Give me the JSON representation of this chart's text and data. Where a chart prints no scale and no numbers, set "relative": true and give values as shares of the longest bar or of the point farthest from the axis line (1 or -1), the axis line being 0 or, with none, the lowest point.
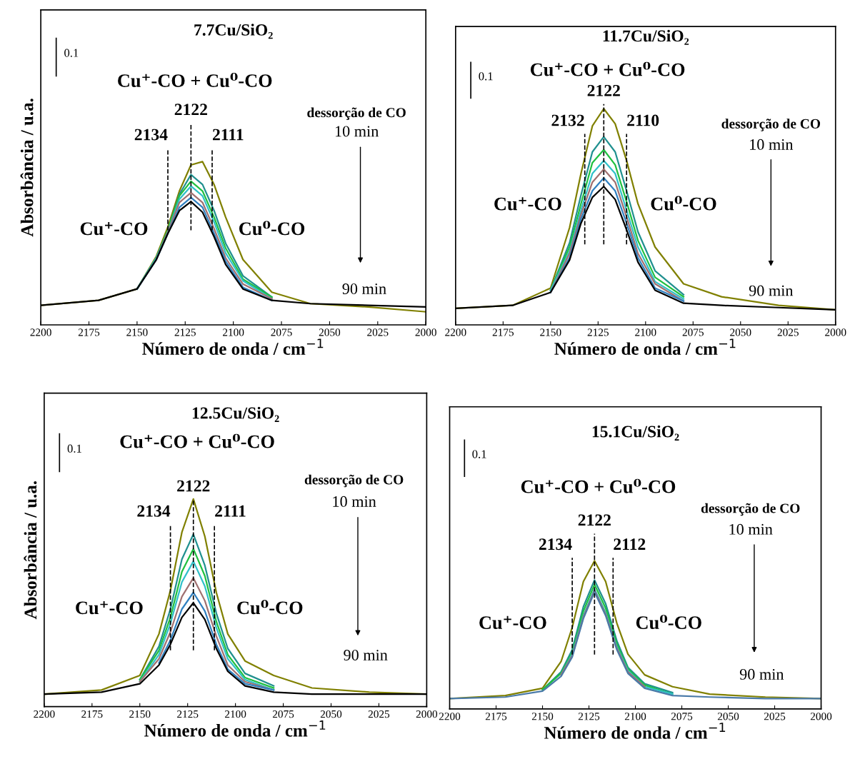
{
  "chart_data": [
    {
      "type": "line",
      "title": "7.7Cu/SiO₂",
      "relative": true,
      "xlabel": "Número de onda / cm$^{−1}$",
      "ylabel": "Absorbância / u.a.",
      "x": [
        2200,
        2170,
        2150,
        2140,
        2134,
        2128,
        2122,
        2116,
        2110,
        2104,
        2095,
        2080,
        2060,
        2030,
        2000
      ],
      "xlim": [
        2200,
        2000
      ],
      "xticks": [
        2200,
        2175,
        2150,
        2125,
        2100,
        2075,
        2050,
        2025,
        2000
      ],
      "grid": false,
      "legend": false,
      "marker": "none",
      "line_style": "solid",
      "series": [
        {
          "color": "#808000",
          "values": [
            0.12,
            0.15,
            0.22,
            0.42,
            0.6,
            0.82,
            0.98,
            1.0,
            0.86,
            0.66,
            0.4,
            0.2,
            0.13,
            0.11,
            0.08
          ]
        },
        {
          "color": "#20908f",
          "values": [
            null,
            null,
            0.22,
            0.41,
            0.58,
            0.8,
            0.92,
            0.86,
            0.7,
            0.5,
            0.3,
            0.17,
            null,
            null,
            null
          ]
        },
        {
          "color": "#20c040",
          "values": [
            null,
            null,
            0.22,
            0.41,
            0.58,
            0.79,
            0.88,
            0.82,
            0.66,
            0.47,
            0.28,
            0.17,
            null,
            null,
            null
          ]
        },
        {
          "color": "#30c0c8",
          "values": [
            null,
            null,
            0.22,
            0.41,
            0.57,
            0.77,
            0.85,
            0.79,
            0.63,
            0.44,
            0.27,
            0.16,
            null,
            null,
            null
          ]
        },
        {
          "color": "#a07070",
          "values": [
            null,
            null,
            0.22,
            0.4,
            0.57,
            0.75,
            0.81,
            0.75,
            0.59,
            0.41,
            0.25,
            0.16,
            null,
            null,
            null
          ]
        },
        {
          "color": "#3080c0",
          "values": [
            null,
            null,
            0.22,
            0.4,
            0.56,
            0.72,
            0.78,
            0.72,
            0.56,
            0.39,
            0.23,
            0.15,
            null,
            null,
            null
          ]
        },
        {
          "color": "#000000",
          "values": [
            0.12,
            0.15,
            0.22,
            0.4,
            0.56,
            0.7,
            0.755,
            0.69,
            0.54,
            0.37,
            0.22,
            0.15,
            0.13,
            0.12,
            0.11
          ]
        }
      ],
      "ref_lines": [
        {
          "axis": "x",
          "value": 2134,
          "label": "2134",
          "color": "#000000",
          "line_style": "dashed"
        },
        {
          "axis": "x",
          "value": 2122,
          "label": "2122",
          "color": "#000000",
          "line_style": "dashed"
        },
        {
          "axis": "x",
          "value": 2111,
          "label": "2111",
          "color": "#000000",
          "line_style": "dashed"
        }
      ],
      "annotations": [
        "0.1",
        "Cu⁺-CO + Cu⁰-CO",
        "dessorção de CO",
        "10 min",
        "90 min",
        "Cu⁺-CO",
        "Cu⁰-CO"
      ]
    },
    {
      "type": "line",
      "title": "11.7Cu/SiO₂",
      "relative": true,
      "xlabel": "Número de onda / cm$^{−1}$",
      "x": [
        2200,
        2170,
        2150,
        2140,
        2134,
        2128,
        2122,
        2116,
        2110,
        2104,
        2095,
        2080,
        2060,
        2030,
        2000
      ],
      "xlim": [
        2200,
        2000
      ],
      "xticks": [
        2200,
        2175,
        2150,
        2125,
        2100,
        2075,
        2050,
        2025,
        2000
      ],
      "grid": false,
      "legend": false,
      "marker": "none",
      "line_style": "solid",
      "series": [
        {
          "color": "#808000",
          "values": [
            0.076,
            0.09,
            0.17,
            0.45,
            0.7,
            0.92,
            1.0,
            0.93,
            0.76,
            0.56,
            0.36,
            0.19,
            0.13,
            0.09,
            0.07
          ]
        },
        {
          "color": "#20908f",
          "values": [
            null,
            null,
            0.16,
            0.38,
            0.6,
            0.8,
            0.87,
            0.8,
            0.62,
            0.43,
            0.25,
            0.14,
            null,
            null,
            null
          ]
        },
        {
          "color": "#20c040",
          "values": [
            null,
            null,
            0.16,
            0.36,
            0.56,
            0.75,
            0.81,
            0.74,
            0.57,
            0.39,
            0.22,
            0.13,
            null,
            null,
            null
          ]
        },
        {
          "color": "#30c0c8",
          "values": [
            null,
            null,
            0.16,
            0.34,
            0.53,
            0.7,
            0.76,
            0.7,
            0.53,
            0.36,
            0.2,
            0.12,
            null,
            null,
            null
          ]
        },
        {
          "color": "#a07070",
          "values": [
            null,
            null,
            0.15,
            0.33,
            0.51,
            0.66,
            0.72,
            0.66,
            0.5,
            0.33,
            0.19,
            0.11,
            null,
            null,
            null
          ]
        },
        {
          "color": "#3080c0",
          "values": [
            null,
            null,
            0.15,
            0.31,
            0.49,
            0.62,
            0.68,
            0.62,
            0.47,
            0.31,
            0.17,
            0.11,
            null,
            null,
            null
          ]
        },
        {
          "color": "#000000",
          "values": [
            0.076,
            0.09,
            0.15,
            0.3,
            0.47,
            0.59,
            0.64,
            0.58,
            0.44,
            0.29,
            0.16,
            0.1,
            0.09,
            0.08,
            0.07
          ]
        }
      ],
      "ref_lines": [
        {
          "axis": "x",
          "value": 2132,
          "label": "2132",
          "color": "#000000",
          "line_style": "dashed"
        },
        {
          "axis": "x",
          "value": 2122,
          "label": "2122",
          "color": "#000000",
          "line_style": "dashed"
        },
        {
          "axis": "x",
          "value": 2110,
          "label": "2110",
          "color": "#000000",
          "line_style": "dashed"
        }
      ],
      "annotations": [
        "0.1",
        "Cu⁺-CO + Cu⁰-CO",
        "dessorção de CO",
        "10 min",
        "90 min",
        "Cu⁺-CO",
        "Cu⁰-CO"
      ]
    },
    {
      "type": "line",
      "title": "12.5Cu/SiO₂",
      "relative": true,
      "xlabel": "Número de onda / cm$^{−1}$",
      "ylabel": "Absorbância / u.a.",
      "x": [
        2200,
        2170,
        2150,
        2140,
        2134,
        2128,
        2122,
        2116,
        2110,
        2104,
        2095,
        2080,
        2060,
        2030,
        2000
      ],
      "xlim": [
        2200,
        2000
      ],
      "xticks": [
        2200,
        2175,
        2150,
        2125,
        2100,
        2075,
        2050,
        2025,
        2000
      ],
      "grid": false,
      "legend": false,
      "marker": "none",
      "line_style": "solid",
      "series": [
        {
          "color": "#808000",
          "values": [
            0.06,
            0.08,
            0.15,
            0.35,
            0.56,
            0.84,
            1.0,
            0.82,
            0.55,
            0.35,
            0.22,
            0.15,
            0.09,
            0.07,
            0.06
          ]
        },
        {
          "color": "#20908f",
          "values": [
            null,
            null,
            0.13,
            0.29,
            0.47,
            0.71,
            0.83,
            0.68,
            0.45,
            0.28,
            0.16,
            0.1,
            null,
            null,
            null
          ]
        },
        {
          "color": "#20c040",
          "values": [
            null,
            null,
            0.13,
            0.27,
            0.43,
            0.65,
            0.76,
            0.63,
            0.41,
            0.25,
            0.14,
            0.09,
            null,
            null,
            null
          ]
        },
        {
          "color": "#30c0c8",
          "values": [
            null,
            null,
            0.12,
            0.25,
            0.4,
            0.6,
            0.7,
            0.58,
            0.38,
            0.23,
            0.13,
            0.08,
            null,
            null,
            null
          ]
        },
        {
          "color": "#a07070",
          "values": [
            null,
            null,
            0.12,
            0.23,
            0.36,
            0.53,
            0.62,
            0.51,
            0.34,
            0.2,
            0.12,
            0.08,
            null,
            null,
            null
          ]
        },
        {
          "color": "#3080c0",
          "values": [
            null,
            null,
            null,
            0.21,
            0.32,
            0.47,
            0.55,
            0.46,
            0.3,
            0.18,
            0.11,
            0.08,
            null,
            null,
            null
          ]
        },
        {
          "color": "#000000",
          "values": [
            0.06,
            0.07,
            0.11,
            0.2,
            0.3,
            0.43,
            0.5,
            0.42,
            0.28,
            0.17,
            0.1,
            0.07,
            0.06,
            0.06,
            0.06
          ]
        }
      ],
      "ref_lines": [
        {
          "axis": "x",
          "value": 2134,
          "label": "2134",
          "color": "#000000",
          "line_style": "dashed"
        },
        {
          "axis": "x",
          "value": 2122,
          "label": "2122",
          "color": "#000000",
          "line_style": "dashed"
        },
        {
          "axis": "x",
          "value": 2111,
          "label": "2111",
          "color": "#000000",
          "line_style": "dashed"
        }
      ],
      "annotations": [
        "0.1",
        "Cu⁺-CO + Cu⁰-CO",
        "dessorção de CO",
        "10 min",
        "90 min",
        "Cu⁺-CO",
        "Cu⁰-CO"
      ]
    },
    {
      "type": "line",
      "title": "15.1Cu/SiO₂",
      "relative": true,
      "xlabel": "Número de onda / cm$^{−1}$",
      "x": [
        2200,
        2170,
        2150,
        2140,
        2134,
        2128,
        2122,
        2116,
        2110,
        2104,
        2095,
        2080,
        2060,
        2030,
        2000
      ],
      "xlim": [
        2200,
        2000
      ],
      "xticks": [
        2200,
        2175,
        2150,
        2125,
        2100,
        2075,
        2050,
        2025,
        2000
      ],
      "grid": false,
      "legend": false,
      "marker": "none",
      "line_style": "solid",
      "series": [
        {
          "color": "#808000",
          "values": [
            0.07,
            0.09,
            0.14,
            0.32,
            0.55,
            0.86,
            1.0,
            0.86,
            0.58,
            0.37,
            0.23,
            0.15,
            0.1,
            0.08,
            0.07
          ]
        },
        {
          "color": "#20908f",
          "values": [
            null,
            null,
            0.13,
            0.25,
            0.4,
            0.69,
            0.87,
            0.71,
            0.46,
            0.28,
            0.17,
            0.11,
            null,
            null,
            null
          ]
        },
        {
          "color": "#20c040",
          "values": [
            null,
            null,
            0.13,
            0.24,
            0.38,
            0.66,
            0.84,
            0.68,
            0.44,
            0.27,
            0.16,
            0.1,
            null,
            null,
            null
          ]
        },
        {
          "color": "#30c0c8",
          "values": [
            null,
            null,
            null,
            0.23,
            0.37,
            0.63,
            0.81,
            0.65,
            0.42,
            0.26,
            0.15,
            0.1,
            null,
            null,
            null
          ]
        },
        {
          "color": "#a07070",
          "values": [
            null,
            null,
            null,
            0.23,
            0.36,
            0.62,
            0.8,
            0.64,
            0.41,
            0.25,
            0.15,
            null,
            null,
            null,
            null
          ]
        },
        {
          "color": "#4a7aa8",
          "values": [
            0.07,
            0.08,
            0.12,
            0.22,
            0.35,
            0.61,
            0.79,
            0.63,
            0.4,
            0.24,
            0.14,
            0.09,
            0.08,
            0.07,
            0.07
          ]
        }
      ],
      "ref_lines": [
        {
          "axis": "x",
          "value": 2134,
          "label": "2134",
          "color": "#000000",
          "line_style": "dashed"
        },
        {
          "axis": "x",
          "value": 2122,
          "label": "2122",
          "color": "#000000",
          "line_style": "dashed"
        },
        {
          "axis": "x",
          "value": 2112,
          "label": "2112",
          "color": "#000000",
          "line_style": "dashed"
        }
      ],
      "annotations": [
        "0.1",
        "Cu⁺-CO + Cu⁰-CO",
        "dessorção de CO",
        "10 min",
        "90 min",
        "Cu⁺-CO",
        "Cu⁰-CO"
      ]
    }
  ]
}
